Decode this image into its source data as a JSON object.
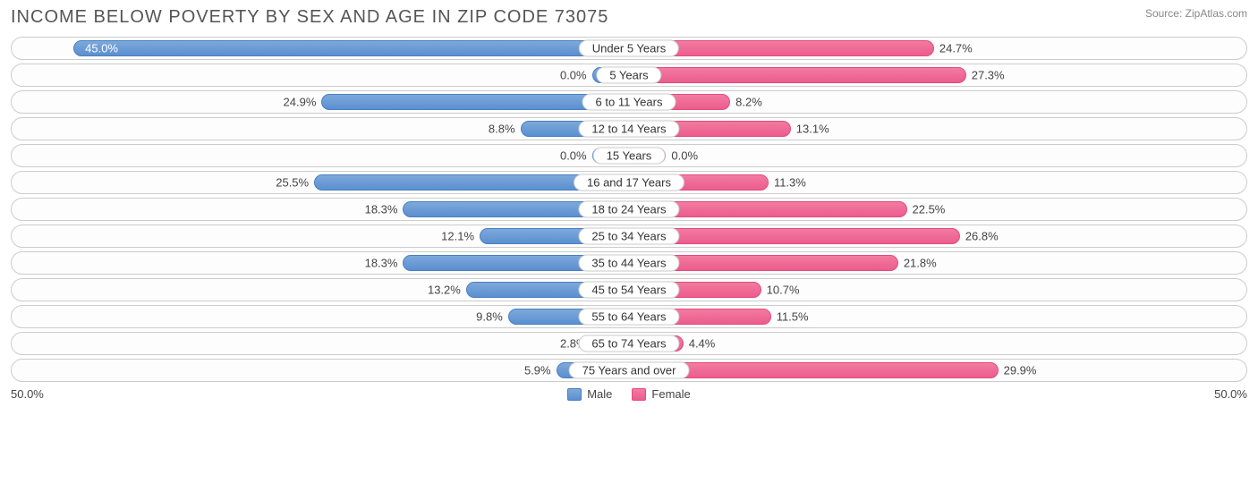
{
  "chart": {
    "type": "diverging-bar",
    "title": "INCOME BELOW POVERTY BY SEX AND AGE IN ZIP CODE 73075",
    "title_fontsize": 20,
    "title_color": "#555555",
    "source": "Source: ZipAtlas.com",
    "source_fontsize": 12,
    "source_color": "#888888",
    "axis_max": 50.0,
    "axis_left_label": "50.0%",
    "axis_right_label": "50.0%",
    "min_bar_pct": 6.0,
    "background_color": "#ffffff",
    "row_border_color": "#cccccc",
    "row_bg_color": "#fdfdfd",
    "male_gradient_top": "#7da9db",
    "male_gradient_bottom": "#5b8fd0",
    "male_border": "#4a7fc2",
    "female_gradient_top": "#f27ba2",
    "female_gradient_bottom": "#ec5c8c",
    "female_border": "#e44a7d",
    "label_fontsize": 13,
    "label_color": "#444444",
    "categories": [
      {
        "label": "Under 5 Years",
        "male": 45.0,
        "female": 24.7
      },
      {
        "label": "5 Years",
        "male": 0.0,
        "female": 27.3
      },
      {
        "label": "6 to 11 Years",
        "male": 24.9,
        "female": 8.2
      },
      {
        "label": "12 to 14 Years",
        "male": 8.8,
        "female": 13.1
      },
      {
        "label": "15 Years",
        "male": 0.0,
        "female": 0.0
      },
      {
        "label": "16 and 17 Years",
        "male": 25.5,
        "female": 11.3
      },
      {
        "label": "18 to 24 Years",
        "male": 18.3,
        "female": 22.5
      },
      {
        "label": "25 to 34 Years",
        "male": 12.1,
        "female": 26.8
      },
      {
        "label": "35 to 44 Years",
        "male": 18.3,
        "female": 21.8
      },
      {
        "label": "45 to 54 Years",
        "male": 13.2,
        "female": 10.7
      },
      {
        "label": "55 to 64 Years",
        "male": 9.8,
        "female": 11.5
      },
      {
        "label": "65 to 74 Years",
        "male": 2.8,
        "female": 4.4
      },
      {
        "label": "75 Years and over",
        "male": 5.9,
        "female": 29.9
      }
    ],
    "legend": {
      "male": "Male",
      "female": "Female"
    }
  }
}
